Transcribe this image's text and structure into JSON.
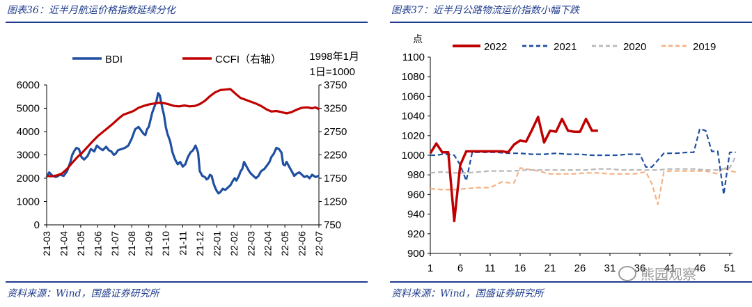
{
  "left": {
    "title": "图表36：近半月航运价格指数延续分化",
    "source": "资料来源：Wind，国盛证券研究所",
    "legend_note_line1": "1998年1月",
    "legend_note_line2": "1日=1000"
  },
  "right": {
    "title": "图表37：近半月公路物流运价指数小幅下跌",
    "source": "资料来源：Wind，国盛证券研究所",
    "y_unit": "点"
  },
  "watermark": "熊园观察",
  "colors": {
    "title": "#1f3c8c",
    "bdi": "#1f4fa0",
    "ccfi": "#c00000",
    "s2022": "#c00000",
    "s2021": "#1f4fa0",
    "s2020": "#b8b8b8",
    "s2019": "#f4b183"
  },
  "chart_data": [
    {
      "type": "line",
      "title": "",
      "categories": [
        "21-03",
        "21-04",
        "21-05",
        "21-06",
        "21-07",
        "21-08",
        "21-09",
        "21-10",
        "21-11",
        "21-12",
        "22-01",
        "22-02",
        "22-03",
        "22-04",
        "22-05",
        "22-06",
        "22-07"
      ],
      "y_left": {
        "ylim": [
          0,
          6000
        ],
        "ticks": [
          "0",
          "1000",
          "2000",
          "3000",
          "4000",
          "5000",
          "6000"
        ]
      },
      "y_right": {
        "ylim": [
          750,
          3750
        ],
        "ticks": [
          "750",
          "1250",
          "1750",
          "2250",
          "2750",
          "3250",
          "3750"
        ]
      },
      "legend_placement": "top",
      "series": [
        {
          "name": "BDI",
          "axis": "left",
          "x": [
            0,
            0.15,
            0.35,
            0.55,
            0.8,
            1.0,
            1.2,
            1.4,
            1.5,
            1.65,
            1.75,
            1.9,
            2.05,
            2.2,
            2.4,
            2.6,
            2.8,
            2.95,
            3.1,
            3.3,
            3.5,
            3.65,
            3.8,
            3.95,
            4.05,
            4.2,
            4.4,
            4.6,
            4.8,
            5.0,
            5.2,
            5.4,
            5.55,
            5.7,
            5.8,
            5.9,
            6.0,
            6.1,
            6.2,
            6.35,
            6.45,
            6.55,
            6.65,
            6.8,
            6.9,
            7.0,
            7.1,
            7.25,
            7.4,
            7.55,
            7.7,
            7.85,
            8.0,
            8.15,
            8.3,
            8.45,
            8.6,
            8.75,
            8.9,
            9.0,
            9.15,
            9.3,
            9.4,
            9.5,
            9.6,
            9.7,
            9.8,
            9.9,
            10.0,
            10.1,
            10.2,
            10.35,
            10.5,
            10.65,
            10.8,
            10.95,
            11.05,
            11.15,
            11.3,
            11.4,
            11.5,
            11.6,
            11.75,
            11.9,
            12.0,
            12.15,
            12.3,
            12.45,
            12.6,
            12.8,
            13.0,
            13.1,
            13.2,
            13.35,
            13.5,
            13.65,
            13.8,
            13.9,
            14.0,
            14.1,
            14.25,
            14.4,
            14.55,
            14.7,
            14.85,
            15.0,
            15.15,
            15.3,
            15.45,
            15.6,
            15.8,
            16.0
          ],
          "values": [
            2050,
            2250,
            2100,
            2050,
            2150,
            2100,
            2300,
            2700,
            3000,
            3200,
            3300,
            3250,
            2900,
            2800,
            2950,
            3250,
            3150,
            3400,
            3300,
            3200,
            3350,
            3200,
            3150,
            3000,
            3050,
            3200,
            3250,
            3300,
            3400,
            3700,
            4100,
            4200,
            4050,
            3900,
            3850,
            4100,
            4200,
            4500,
            4800,
            5100,
            5300,
            5650,
            5550,
            5000,
            4700,
            4200,
            3900,
            3600,
            3100,
            2800,
            2600,
            2700,
            2500,
            2600,
            2900,
            3100,
            3200,
            3400,
            3100,
            2300,
            2100,
            2050,
            1950,
            2000,
            2150,
            2100,
            1800,
            1600,
            1450,
            1350,
            1400,
            1550,
            1500,
            1600,
            1700,
            1900,
            2000,
            1900,
            2100,
            2300,
            2400,
            2700,
            2500,
            2300,
            2200,
            2100,
            2000,
            2100,
            2300,
            2400,
            2600,
            2700,
            2900,
            3050,
            3300,
            3250,
            3100,
            2600,
            2550,
            2700,
            2500,
            2300,
            2100,
            2200,
            2250,
            2150,
            2050,
            2100,
            2000,
            2150,
            2050,
            2100
          ]
        },
        {
          "name": "CCFI（右轴）",
          "axis": "right",
          "x": [
            0,
            0.3,
            0.6,
            0.9,
            1.2,
            1.5,
            1.8,
            2.1,
            2.4,
            2.7,
            3.0,
            3.3,
            3.6,
            3.9,
            4.2,
            4.5,
            4.8,
            5.1,
            5.4,
            5.7,
            6.0,
            6.3,
            6.6,
            6.9,
            7.2,
            7.5,
            7.8,
            8.1,
            8.4,
            8.7,
            9.0,
            9.3,
            9.6,
            9.9,
            10.2,
            10.5,
            10.8,
            11.1,
            11.4,
            11.7,
            12.0,
            12.3,
            12.6,
            12.9,
            13.2,
            13.5,
            13.8,
            14.1,
            14.4,
            14.7,
            15.0,
            15.3,
            15.6,
            15.8,
            16.0
          ],
          "values": [
            1800,
            1790,
            1810,
            1850,
            1950,
            2080,
            2200,
            2300,
            2420,
            2540,
            2650,
            2740,
            2830,
            2920,
            3020,
            3110,
            3150,
            3190,
            3260,
            3300,
            3330,
            3350,
            3370,
            3360,
            3330,
            3300,
            3290,
            3310,
            3290,
            3300,
            3340,
            3410,
            3510,
            3590,
            3640,
            3650,
            3660,
            3560,
            3470,
            3430,
            3390,
            3350,
            3300,
            3230,
            3180,
            3190,
            3170,
            3140,
            3170,
            3220,
            3260,
            3270,
            3250,
            3270,
            3230
          ]
        }
      ]
    },
    {
      "type": "line",
      "title": "",
      "ylabel": "点",
      "xlim": [
        1,
        52
      ],
      "x_ticks": [
        "1",
        "6",
        "11",
        "16",
        "21",
        "26",
        "31",
        "36",
        "41",
        "46",
        "51"
      ],
      "ylim": [
        900,
        1100
      ],
      "y_ticks": [
        "900",
        "920",
        "940",
        "960",
        "980",
        "1000",
        "1020",
        "1040",
        "1060",
        "1080",
        "1100"
      ],
      "legend_placement": "top",
      "series": [
        {
          "name": "2022",
          "x": [
            1,
            2,
            3,
            4,
            5,
            6,
            7,
            8,
            9,
            10,
            11,
            12,
            13,
            14,
            15,
            16,
            17,
            18,
            19,
            20,
            21,
            22,
            23,
            24,
            25,
            26,
            27,
            28,
            29
          ],
          "values": [
            1002,
            1012,
            1003,
            1003,
            933,
            990,
            1004,
            1004,
            1004,
            1004,
            1004,
            1004,
            1004,
            1003,
            1011,
            1015,
            1014,
            1026,
            1039,
            1013,
            1025,
            1024,
            1037,
            1025,
            1024,
            1024,
            1037,
            1025,
            1025
          ]
        },
        {
          "name": "2021",
          "x": [
            1,
            2,
            3,
            4,
            5,
            6,
            7,
            8,
            10,
            12,
            14,
            16,
            18,
            20,
            22,
            24,
            26,
            28,
            30,
            32,
            34,
            36,
            37,
            38,
            40,
            42,
            44,
            45,
            46,
            47,
            48,
            49,
            50,
            51,
            52
          ],
          "values": [
            1000,
            1000,
            1001,
            1001,
            1000,
            990,
            974,
            1003,
            1003,
            1003,
            1002,
            1002,
            1001,
            1001,
            1002,
            1001,
            1001,
            1000,
            1000,
            1000,
            1001,
            1001,
            988,
            988,
            1002,
            1002,
            1003,
            1003,
            1027,
            1025,
            1004,
            1004,
            960,
            1003,
            1003
          ]
        },
        {
          "name": "2020",
          "x": [
            1,
            3,
            5,
            7,
            9,
            11,
            13,
            15,
            17,
            19,
            21,
            23,
            25,
            27,
            29,
            31,
            33,
            35,
            37,
            39,
            41,
            43,
            45,
            47,
            49,
            50,
            51,
            52
          ],
          "values": [
            982,
            983,
            982,
            982,
            983,
            984,
            984,
            984,
            985,
            985,
            985,
            985,
            985,
            985,
            986,
            986,
            985,
            985,
            985,
            985,
            986,
            986,
            986,
            985,
            985,
            986,
            987,
            999
          ]
        },
        {
          "name": "2019",
          "x": [
            1,
            3,
            5,
            7,
            9,
            11,
            13,
            14,
            15,
            16,
            17,
            19,
            21,
            23,
            25,
            27,
            29,
            31,
            33,
            35,
            37,
            38,
            39,
            40,
            41,
            43,
            45,
            47,
            49,
            50,
            51,
            52
          ],
          "values": [
            966,
            965,
            965,
            966,
            967,
            967,
            973,
            972,
            972,
            987,
            986,
            984,
            981,
            981,
            981,
            982,
            982,
            981,
            981,
            981,
            983,
            971,
            950,
            983,
            984,
            984,
            984,
            984,
            981,
            988,
            984,
            983
          ]
        }
      ]
    }
  ]
}
